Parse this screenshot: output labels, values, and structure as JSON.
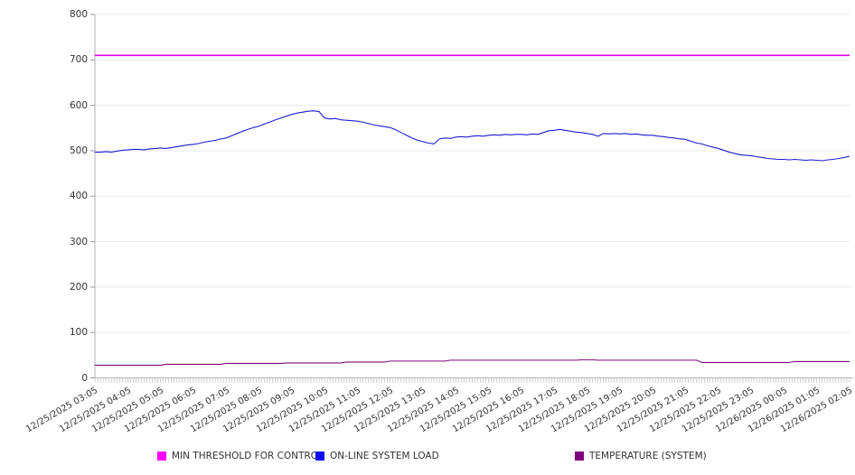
{
  "chart_data": {
    "type": "line",
    "title": "",
    "background": "#ffffff",
    "grid": "horizontal",
    "grid_color": "#e8e8e8",
    "axis_color": "#b0b0b0",
    "tick_color": "#999999",
    "label_color": "#333333",
    "legend_position": "bottom",
    "y_axis": {
      "min": 0,
      "max": 800,
      "tick_step": 100,
      "ticks": [
        0,
        100,
        200,
        300,
        400,
        500,
        600,
        700,
        800
      ]
    },
    "x_axis": {
      "start": "12/25/2025 03:05",
      "end": "12/26/2025 02:05",
      "interval_minutes": 10,
      "minor_tick_interval_minutes": 5,
      "tick_labels": [
        "12/25/2025 03:05",
        "12/25/2025 04:05",
        "12/25/2025 05:05",
        "12/25/2025 06:05",
        "12/25/2025 07:05",
        "12/25/2025 08:05",
        "12/25/2025 09:05",
        "12/25/2025 10:05",
        "12/25/2025 11:05",
        "12/25/2025 12:05",
        "12/25/2025 13:05",
        "12/25/2025 14:05",
        "12/25/2025 15:05",
        "12/25/2025 16:05",
        "12/25/2025 17:05",
        "12/25/2025 18:05",
        "12/25/2025 19:05",
        "12/25/2025 20:05",
        "12/25/2025 21:05",
        "12/25/2025 22:05",
        "12/25/2025 23:05",
        "12/26/2025 00:05",
        "12/26/2025 01:05",
        "12/26/2025 02:05"
      ]
    },
    "series": [
      {
        "name": "MIN THRESHOLD FOR CONTROL",
        "color": "#E600E6",
        "swatch_color": "#FF00FF",
        "width": 1.6,
        "constant_value": 710
      },
      {
        "name": "ON-LINE SYSTEM LOAD",
        "color": "#1C1CD0",
        "swatch_color": "#0D0DF2",
        "width": 1.1,
        "values": [
          497,
          497,
          498,
          497,
          499,
          501,
          502,
          503,
          503,
          502,
          504,
          505,
          506,
          505,
          507,
          509,
          511,
          513,
          514,
          516,
          519,
          521,
          523,
          526,
          528,
          533,
          538,
          543,
          547,
          551,
          554,
          559,
          563,
          568,
          572,
          576,
          580,
          583,
          585,
          587,
          588,
          586,
          572,
          570,
          571,
          568,
          567,
          566,
          565,
          563,
          560,
          557,
          555,
          553,
          551,
          546,
          540,
          534,
          528,
          523,
          520,
          517,
          515,
          526,
          528,
          527,
          530,
          531,
          530,
          532,
          533,
          532,
          534,
          535,
          534,
          536,
          535,
          536,
          536,
          535,
          537,
          536,
          540,
          544,
          545,
          547,
          545,
          543,
          541,
          540,
          538,
          536,
          532,
          538,
          537,
          538,
          537,
          538,
          536,
          537,
          535,
          534,
          534,
          532,
          531,
          529,
          528,
          526,
          525,
          521,
          517,
          515,
          511,
          508,
          505,
          501,
          497,
          494,
          491,
          490,
          489,
          487,
          485,
          483,
          482,
          481,
          481,
          480,
          481,
          480,
          479,
          480,
          479,
          478,
          480,
          481,
          483,
          485,
          488
        ]
      },
      {
        "name": "TEMPERATURE (SYSTEM)",
        "color": "#7D087D",
        "swatch_color": "#800080",
        "width": 1.1,
        "values": [
          28,
          28,
          28,
          28,
          28,
          28,
          28,
          28,
          28,
          28,
          28,
          28,
          28,
          30,
          30,
          30,
          30,
          30,
          30,
          30,
          30,
          30,
          30,
          30,
          32,
          32,
          32,
          32,
          32,
          32,
          32,
          32,
          32,
          32,
          32,
          33,
          33,
          33,
          33,
          33,
          33,
          33,
          33,
          33,
          33,
          33,
          35,
          35,
          35,
          35,
          35,
          35,
          35,
          35,
          37,
          37,
          37,
          37,
          37,
          37,
          37,
          37,
          37,
          37,
          37,
          39,
          39,
          39,
          39,
          39,
          39,
          39,
          39,
          39,
          39,
          39,
          39,
          39,
          39,
          39,
          39,
          39,
          39,
          39,
          39,
          39,
          39,
          39,
          39,
          40,
          40,
          40,
          39,
          39,
          39,
          39,
          39,
          39,
          39,
          39,
          39,
          39,
          39,
          39,
          39,
          39,
          39,
          39,
          39,
          39,
          39,
          34,
          34,
          34,
          34,
          34,
          34,
          34,
          34,
          34,
          34,
          34,
          34,
          34,
          34,
          34,
          34,
          34,
          36,
          36,
          36,
          36,
          36,
          36,
          36,
          36,
          36,
          36,
          36
        ]
      }
    ]
  }
}
